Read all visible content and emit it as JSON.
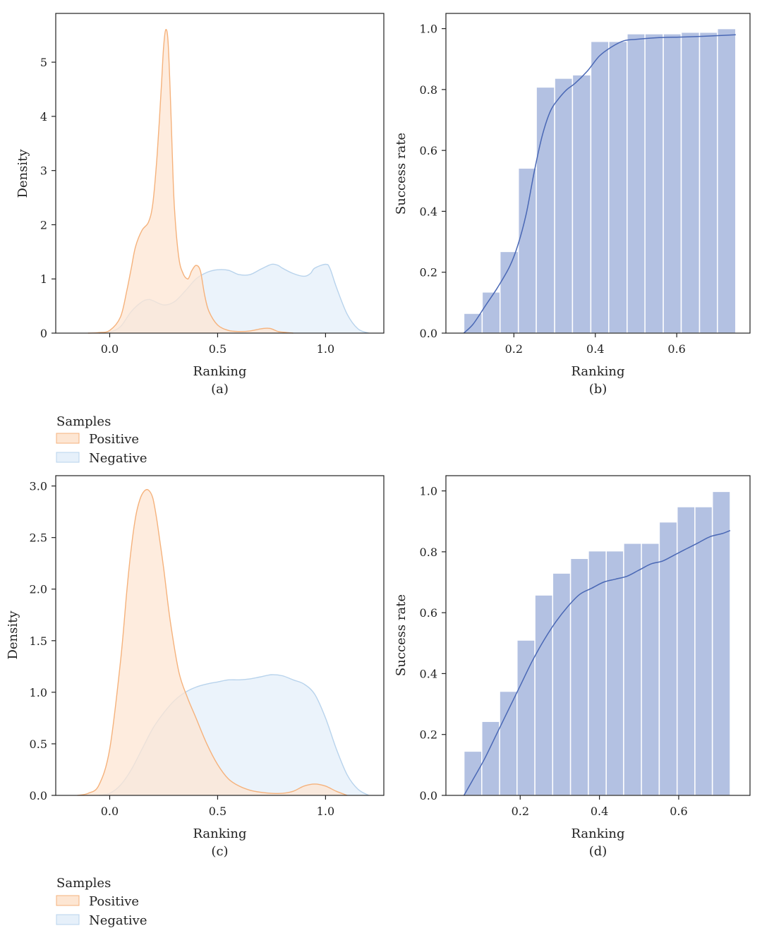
{
  "colors": {
    "positive_fill": "#fde6d3",
    "positive_line": "#f5b27c",
    "negative_fill": "#e6f0fa",
    "negative_line": "#b8d3ec",
    "bar_fill": "#b3c1e2",
    "curve": "#4a68b5"
  },
  "legends": [
    {
      "title": "Samples",
      "items": [
        {
          "label": "Positive"
        },
        {
          "label": "Negative"
        }
      ]
    },
    {
      "title": "Samples",
      "items": [
        {
          "label": "Positive"
        },
        {
          "label": "Negative"
        }
      ]
    }
  ],
  "chart_data": [
    {
      "panel": "(a)",
      "type": "area",
      "xlabel": "Ranking",
      "ylabel": "Density",
      "xlim": [
        -0.25,
        1.27
      ],
      "ylim": [
        0,
        5.9
      ],
      "xticks": [
        0.0,
        0.5,
        1.0
      ],
      "xtick_labels": [
        "0.0",
        "0.5",
        "1.0"
      ],
      "yticks": [
        0,
        1,
        2,
        3,
        4,
        5
      ],
      "ytick_labels": [
        "0",
        "1",
        "2",
        "3",
        "4",
        "5"
      ],
      "grid": false,
      "series": [
        {
          "name": "Positive",
          "x": [
            -0.1,
            -0.05,
            0.0,
            0.05,
            0.08,
            0.1,
            0.12,
            0.15,
            0.18,
            0.2,
            0.22,
            0.24,
            0.25,
            0.26,
            0.27,
            0.28,
            0.29,
            0.3,
            0.32,
            0.34,
            0.36,
            0.37,
            0.38,
            0.4,
            0.42,
            0.44,
            0.46,
            0.5,
            0.55,
            0.6,
            0.65,
            0.7,
            0.73,
            0.75,
            0.78,
            0.82,
            0.85
          ],
          "y": [
            0,
            0.01,
            0.05,
            0.3,
            0.8,
            1.2,
            1.6,
            1.9,
            2.05,
            2.4,
            3.3,
            4.6,
            5.3,
            5.6,
            5.4,
            4.5,
            3.3,
            2.3,
            1.4,
            1.1,
            1.0,
            1.05,
            1.15,
            1.25,
            1.15,
            0.7,
            0.4,
            0.15,
            0.05,
            0.03,
            0.04,
            0.08,
            0.09,
            0.08,
            0.03,
            0.01,
            0
          ]
        },
        {
          "name": "Negative",
          "x": [
            -0.05,
            0.0,
            0.05,
            0.1,
            0.15,
            0.18,
            0.2,
            0.25,
            0.3,
            0.35,
            0.4,
            0.45,
            0.5,
            0.55,
            0.6,
            0.65,
            0.7,
            0.75,
            0.78,
            0.8,
            0.85,
            0.9,
            0.93,
            0.95,
            1.0,
            1.02,
            1.05,
            1.1,
            1.15,
            1.2
          ],
          "y": [
            0,
            0.02,
            0.12,
            0.4,
            0.58,
            0.62,
            0.6,
            0.52,
            0.58,
            0.78,
            1.0,
            1.12,
            1.17,
            1.16,
            1.08,
            1.08,
            1.18,
            1.27,
            1.25,
            1.2,
            1.1,
            1.05,
            1.1,
            1.2,
            1.27,
            1.2,
            0.85,
            0.35,
            0.08,
            0
          ]
        }
      ]
    },
    {
      "panel": "(b)",
      "type": "bar",
      "xlabel": "Ranking",
      "ylabel": "Success rate",
      "xlim": [
        0.033,
        0.78
      ],
      "ylim": [
        0,
        1.05
      ],
      "xticks": [
        0.2,
        0.4,
        0.6
      ],
      "xtick_labels": [
        "0.2",
        "0.4",
        "0.6"
      ],
      "yticks": [
        0.0,
        0.2,
        0.4,
        0.6,
        0.8,
        1.0
      ],
      "ytick_labels": [
        "0.0",
        "0.2",
        "0.4",
        "0.6",
        "0.8",
        "1.0"
      ],
      "grid": false,
      "bar_edges": [
        0.077,
        0.122,
        0.166,
        0.211,
        0.255,
        0.3,
        0.344,
        0.389,
        0.433,
        0.478,
        0.522,
        0.567,
        0.611,
        0.656,
        0.7,
        0.745
      ],
      "values": [
        0.065,
        0.135,
        0.268,
        0.542,
        0.808,
        0.837,
        0.848,
        0.958,
        0.958,
        0.983,
        0.983,
        0.983,
        0.988,
        0.988,
        1.0
      ],
      "curve": {
        "x": [
          0.077,
          0.1,
          0.13,
          0.16,
          0.19,
          0.21,
          0.23,
          0.25,
          0.27,
          0.29,
          0.31,
          0.33,
          0.35,
          0.38,
          0.41,
          0.44,
          0.47,
          0.5,
          0.55,
          0.6,
          0.65,
          0.7,
          0.745
        ],
        "y": [
          0.0,
          0.03,
          0.09,
          0.15,
          0.22,
          0.29,
          0.39,
          0.53,
          0.65,
          0.73,
          0.77,
          0.8,
          0.82,
          0.86,
          0.91,
          0.94,
          0.96,
          0.965,
          0.97,
          0.972,
          0.974,
          0.977,
          0.98
        ]
      }
    },
    {
      "panel": "(c)",
      "type": "area",
      "xlabel": "Ranking",
      "ylabel": "Density",
      "xlim": [
        -0.25,
        1.27
      ],
      "ylim": [
        0,
        3.1
      ],
      "xticks": [
        0.0,
        0.5,
        1.0
      ],
      "xtick_labels": [
        "0.0",
        "0.5",
        "1.0"
      ],
      "yticks": [
        0.0,
        0.5,
        1.0,
        1.5,
        2.0,
        2.5,
        3.0
      ],
      "ytick_labels": [
        "0.0",
        "0.5",
        "1.0",
        "1.5",
        "2.0",
        "2.5",
        "3.0"
      ],
      "grid": false,
      "series": [
        {
          "name": "Positive",
          "x": [
            -0.15,
            -0.1,
            -0.05,
            0.0,
            0.05,
            0.08,
            0.1,
            0.12,
            0.14,
            0.16,
            0.18,
            0.2,
            0.22,
            0.25,
            0.28,
            0.32,
            0.36,
            0.4,
            0.45,
            0.5,
            0.55,
            0.6,
            0.65,
            0.7,
            0.75,
            0.8,
            0.85,
            0.9,
            0.95,
            1.0,
            1.05,
            1.1
          ],
          "y": [
            0,
            0.02,
            0.1,
            0.45,
            1.3,
            2.0,
            2.4,
            2.7,
            2.87,
            2.95,
            2.96,
            2.88,
            2.65,
            2.2,
            1.7,
            1.2,
            0.95,
            0.75,
            0.5,
            0.3,
            0.16,
            0.09,
            0.05,
            0.03,
            0.02,
            0.02,
            0.04,
            0.09,
            0.11,
            0.09,
            0.04,
            0
          ]
        },
        {
          "name": "Negative",
          "x": [
            -0.05,
            0.0,
            0.05,
            0.1,
            0.15,
            0.2,
            0.25,
            0.3,
            0.35,
            0.4,
            0.45,
            0.5,
            0.55,
            0.6,
            0.65,
            0.7,
            0.75,
            0.8,
            0.85,
            0.9,
            0.95,
            1.0,
            1.05,
            1.1,
            1.15,
            1.2
          ],
          "y": [
            0,
            0.02,
            0.1,
            0.25,
            0.45,
            0.65,
            0.8,
            0.92,
            1.0,
            1.05,
            1.08,
            1.1,
            1.12,
            1.12,
            1.13,
            1.15,
            1.17,
            1.16,
            1.12,
            1.08,
            0.98,
            0.75,
            0.45,
            0.2,
            0.06,
            0
          ]
        }
      ]
    },
    {
      "panel": "(d)",
      "type": "bar",
      "xlabel": "Ranking",
      "ylabel": "Success rate",
      "xlim": [
        0.0125,
        0.78
      ],
      "ylim": [
        0,
        1.05
      ],
      "xticks": [
        0.2,
        0.4,
        0.6
      ],
      "xtick_labels": [
        "0.2",
        "0.4",
        "0.6"
      ],
      "yticks": [
        0.0,
        0.2,
        0.4,
        0.6,
        0.8,
        1.0
      ],
      "ytick_labels": [
        "0.0",
        "0.2",
        "0.4",
        "0.6",
        "0.8",
        "1.0"
      ],
      "grid": false,
      "bar_edges": [
        0.058,
        0.103,
        0.148,
        0.192,
        0.237,
        0.282,
        0.327,
        0.372,
        0.417,
        0.461,
        0.506,
        0.551,
        0.596,
        0.641,
        0.685,
        0.73
      ],
      "values": [
        0.145,
        0.243,
        0.342,
        0.51,
        0.658,
        0.73,
        0.778,
        0.803,
        0.803,
        0.828,
        0.828,
        0.898,
        0.948,
        0.948,
        0.998
      ],
      "curve": {
        "x": [
          0.058,
          0.08,
          0.11,
          0.14,
          0.17,
          0.2,
          0.23,
          0.26,
          0.29,
          0.32,
          0.35,
          0.38,
          0.41,
          0.44,
          0.47,
          0.5,
          0.53,
          0.56,
          0.59,
          0.62,
          0.65,
          0.68,
          0.71,
          0.73
        ],
        "y": [
          0.0,
          0.05,
          0.12,
          0.2,
          0.28,
          0.36,
          0.44,
          0.51,
          0.57,
          0.62,
          0.66,
          0.68,
          0.7,
          0.71,
          0.72,
          0.74,
          0.76,
          0.77,
          0.79,
          0.81,
          0.83,
          0.85,
          0.86,
          0.87
        ]
      }
    }
  ]
}
